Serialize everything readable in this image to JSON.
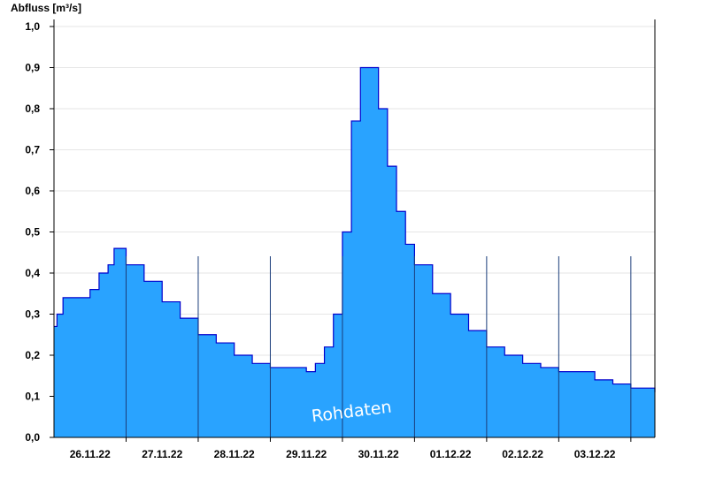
{
  "chart_data": {
    "type": "area",
    "ylabel": "Abfluss [m³/s]",
    "xlabel": "",
    "title": "",
    "ylim": [
      0,
      1.0
    ],
    "yticks": [
      "0,0",
      "0,1",
      "0,2",
      "0,3",
      "0,4",
      "0,5",
      "0,6",
      "0,7",
      "0,8",
      "0,9",
      "1,0"
    ],
    "xlim": [
      "2022-11-25 12:00",
      "2022-12-03 20:00"
    ],
    "x_ticks": [
      "26.11.22",
      "27.11.22",
      "28.11.22",
      "29.11.22",
      "30.11.22",
      "01.12.22",
      "02.12.22",
      "03.12.22"
    ],
    "grid": true,
    "fill_color": "#29a3ff",
    "line_color": "#0000cc",
    "annotation": "Rohdaten",
    "series": [
      {
        "x": [
          "2022-11-25 12:00",
          "2022-11-25 13:00",
          "2022-11-25 15:00",
          "2022-11-25 18:00",
          "2022-11-26 00:00",
          "2022-11-26 03:00",
          "2022-11-26 06:00",
          "2022-11-26 08:00",
          "2022-11-26 12:00",
          "2022-11-26 18:00",
          "2022-11-27 00:00",
          "2022-11-27 06:00",
          "2022-11-27 12:00",
          "2022-11-27 18:00",
          "2022-11-28 00:00",
          "2022-11-28 06:00",
          "2022-11-28 12:00",
          "2022-11-28 18:00",
          "2022-11-29 00:00",
          "2022-11-29 03:00",
          "2022-11-29 06:00",
          "2022-11-29 09:00",
          "2022-11-29 12:00",
          "2022-11-29 15:00",
          "2022-11-29 18:00",
          "2022-11-29 21:00",
          "2022-11-30 00:00",
          "2022-11-30 03:00",
          "2022-11-30 06:00",
          "2022-11-30 09:00",
          "2022-11-30 12:00",
          "2022-11-30 18:00",
          "2022-12-01 00:00",
          "2022-12-01 06:00",
          "2022-12-01 12:00",
          "2022-12-01 18:00",
          "2022-12-02 00:00",
          "2022-12-02 06:00",
          "2022-12-02 12:00",
          "2022-12-02 18:00",
          "2022-12-03 00:00",
          "2022-12-03 06:00",
          "2022-12-03 12:00",
          "2022-12-03 20:00"
        ],
        "values": [
          0.27,
          0.3,
          0.34,
          0.34,
          0.36,
          0.4,
          0.42,
          0.46,
          0.42,
          0.38,
          0.33,
          0.29,
          0.25,
          0.23,
          0.2,
          0.18,
          0.17,
          0.17,
          0.16,
          0.18,
          0.22,
          0.3,
          0.5,
          0.77,
          0.9,
          0.9,
          0.8,
          0.66,
          0.55,
          0.47,
          0.42,
          0.35,
          0.3,
          0.26,
          0.22,
          0.2,
          0.18,
          0.17,
          0.16,
          0.16,
          0.14,
          0.13,
          0.12,
          0.11
        ]
      }
    ]
  }
}
